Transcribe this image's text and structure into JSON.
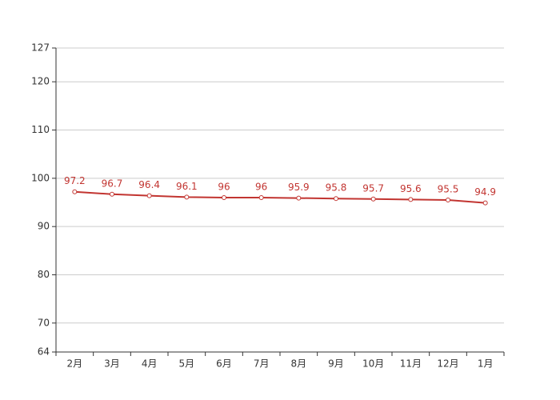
{
  "chart_data": {
    "type": "line",
    "categories": [
      "2月",
      "3月",
      "4月",
      "5月",
      "6月",
      "7月",
      "8月",
      "9月",
      "10月",
      "11月",
      "12月",
      "1月"
    ],
    "series": [
      {
        "name": null,
        "color": "#c23531",
        "values": [
          97.2,
          96.7,
          96.4,
          96.1,
          96,
          96,
          95.9,
          95.8,
          95.7,
          95.6,
          95.5,
          94.9
        ]
      }
    ],
    "ylim": [
      64,
      127
    ],
    "yticks": [
      64,
      70,
      80,
      90,
      100,
      110,
      120,
      127
    ],
    "grid": true
  }
}
